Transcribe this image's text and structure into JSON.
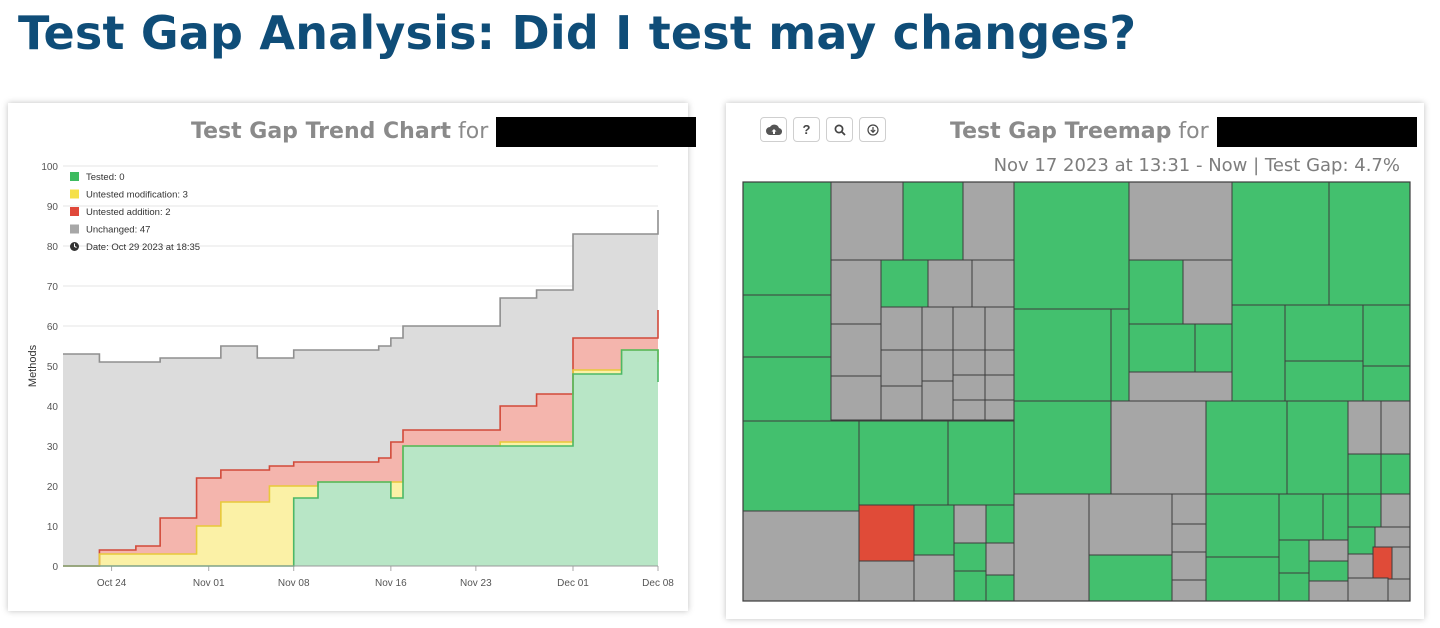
{
  "page": {
    "title": "Test Gap Analysis: Did I test may changes?"
  },
  "trend_chart": {
    "title": "Test Gap Trend Chart",
    "title_suffix": "for",
    "legend": [
      {
        "label": "Tested: 0",
        "color": "#3dbb5f"
      },
      {
        "label": "Untested modification: 3",
        "color": "#f5e04a"
      },
      {
        "label": "Untested addition: 2",
        "color": "#e0483a"
      },
      {
        "label": "Unchanged: 47",
        "color": "#a7a7a7"
      }
    ],
    "date_label": "Date: Oct 29 2023 at 18:35",
    "ylabel": "Methods",
    "y_ticks": [
      "0",
      "10",
      "20",
      "30",
      "40",
      "50",
      "60",
      "70",
      "80",
      "90",
      "100"
    ],
    "x_ticks": [
      "Oct 24",
      "Nov 01",
      "Nov 08",
      "Nov 16",
      "Nov 23",
      "Dec 01",
      "Dec 08"
    ]
  },
  "chart_data": {
    "type": "area",
    "title": "Test Gap Trend Chart",
    "ylabel": "Methods",
    "ylim": [
      0,
      100
    ],
    "x": [
      "Oct 20",
      "Oct 23",
      "Oct 26",
      "Oct 28",
      "Oct 31",
      "Nov 02",
      "Nov 05",
      "Nov 06",
      "Nov 08",
      "Nov 10",
      "Nov 15",
      "Nov 16",
      "Nov 17",
      "Nov 18",
      "Nov 22",
      "Nov 25",
      "Nov 28",
      "Nov 30",
      "Dec 01",
      "Dec 02",
      "Dec 05",
      "Dec 07",
      "Dec 08"
    ],
    "series": [
      {
        "name": "Tested",
        "values": [
          0,
          0,
          0,
          0,
          0,
          0,
          0,
          0,
          17,
          21,
          21,
          17,
          30,
          30,
          30,
          30,
          30,
          30,
          48,
          48,
          54,
          54,
          46
        ]
      },
      {
        "name": "Untested modification",
        "values": [
          0,
          3,
          3,
          3,
          10,
          16,
          16,
          20,
          20,
          21,
          21,
          21,
          30,
          30,
          30,
          31,
          31,
          31,
          49,
          49,
          54,
          54,
          51
        ]
      },
      {
        "name": "Untested addition",
        "values": [
          0,
          4,
          5,
          12,
          22,
          24,
          24,
          25,
          26,
          26,
          27,
          31,
          34,
          34,
          34,
          40,
          43,
          43,
          57,
          57,
          57,
          57,
          64
        ]
      },
      {
        "name": "Unchanged",
        "values": [
          53,
          51,
          51,
          52,
          52,
          55,
          52,
          52,
          54,
          54,
          55,
          57,
          60,
          60,
          60,
          67,
          69,
          69,
          83,
          83,
          83,
          83,
          89
        ]
      }
    ],
    "grid": true
  },
  "treemap": {
    "title": "Test Gap Treemap",
    "title_suffix": "for",
    "subtitle": "Nov 17 2023 at 13:31 - Now | Test Gap: 4.7%",
    "colors": {
      "tested": "#43c06e",
      "unchanged": "#a6a6a6",
      "untested": "#e04b38"
    },
    "tools": [
      {
        "name": "upload-icon"
      },
      {
        "name": "help-icon",
        "label": "?"
      },
      {
        "name": "search-icon"
      },
      {
        "name": "download-icon"
      }
    ]
  }
}
